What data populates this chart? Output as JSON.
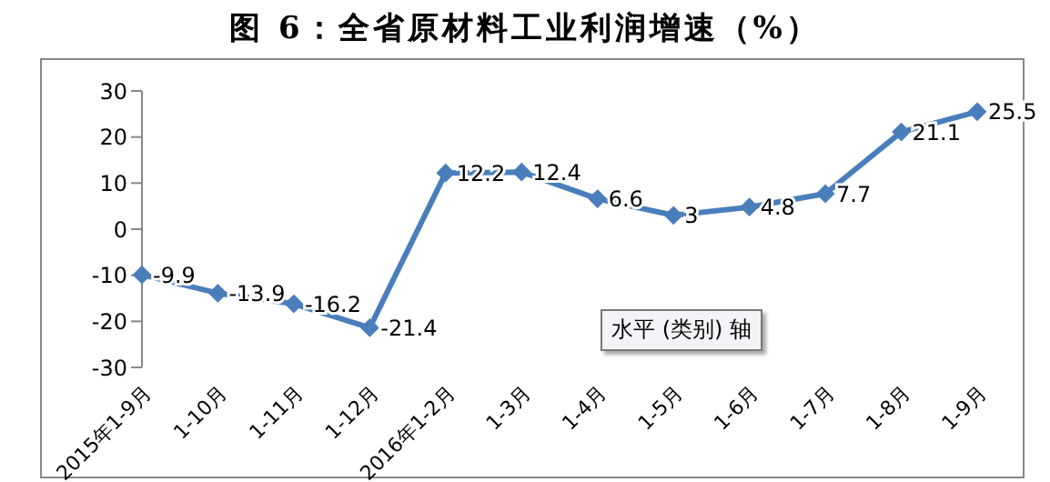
{
  "chart_data": {
    "type": "line",
    "title": "图 6：全省原材料工业利润增速（%）",
    "categories": [
      "2015年1-9月",
      "1-10月",
      "1-11月",
      "1-12月",
      "2016年1-2月",
      "1-3月",
      "1-4月",
      "1-5月",
      "1-6月",
      "1-7月",
      "1-8月",
      "1-9月"
    ],
    "series": [
      {
        "color": "#4a7ebb",
        "values": [
          -9.9,
          -13.9,
          -16.2,
          -21.4,
          12.2,
          12.4,
          6.6,
          3,
          4.8,
          7.7,
          21.1,
          25.5
        ]
      }
    ],
    "ylim": [
      -30,
      30
    ],
    "yticks": [
      -30,
      -20,
      -10,
      0,
      10,
      20,
      30
    ],
    "grid": false,
    "legend": false,
    "marker": "diamond",
    "line_style": "solid",
    "data_labels": true,
    "annotations": [
      "水平 (类别) 轴"
    ]
  }
}
